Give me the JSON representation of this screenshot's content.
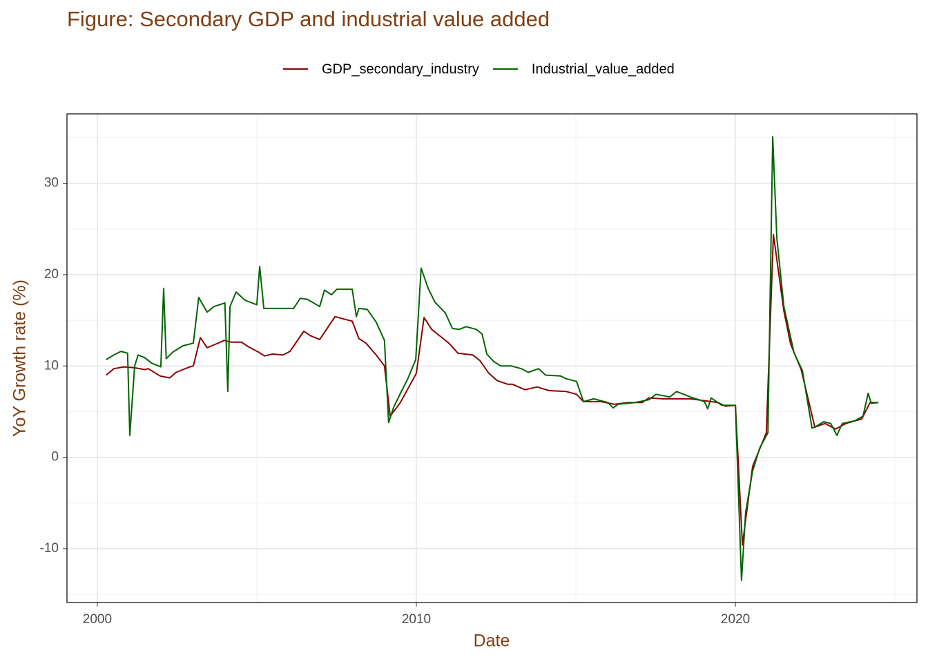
{
  "chart_data": {
    "type": "line",
    "title": "Figure: Secondary GDP and industrial value added",
    "x_label": "Date",
    "y_label": "YoY Growth rate (%)",
    "xlim": [
      1999.05,
      2025.69
    ],
    "xticks": [
      2000,
      2010,
      2020
    ],
    "ylim": [
      -15.9,
      37.6
    ],
    "yticks": [
      -10,
      0,
      10,
      20,
      30
    ],
    "grid": true,
    "minor_grid": true,
    "legend_position": "top",
    "series": [
      {
        "name": "GDP_secondary_industry",
        "color": "#8b0000",
        "x": [
          2000.28,
          2000.52,
          2000.84,
          2001.17,
          2001.49,
          2001.6,
          2001.97,
          2002.27,
          2002.47,
          2002.9,
          2003.01,
          2003.23,
          2003.44,
          2003.72,
          2003.98,
          2004.2,
          2004.52,
          2004.74,
          2005.06,
          2005.24,
          2005.5,
          2005.82,
          2006.04,
          2006.47,
          2006.69,
          2006.97,
          2007.45,
          2007.99,
          2008.2,
          2008.42,
          2008.74,
          2009.0,
          2009.18,
          2009.5,
          2010.0,
          2010.24,
          2010.48,
          2011.02,
          2011.3,
          2011.77,
          2011.99,
          2012.27,
          2012.53,
          2012.86,
          2013.01,
          2013.4,
          2013.79,
          2014.16,
          2014.7,
          2015.02,
          2015.24,
          2015.78,
          2016.21,
          2016.65,
          2017.08,
          2017.29,
          2017.73,
          2018.59,
          2019.46,
          2019.68,
          2020.0,
          2020.22,
          2020.54,
          2020.97,
          2021.19,
          2021.52,
          2021.73,
          2022.06,
          2022.49,
          2022.81,
          2023.14,
          2023.46,
          2023.96,
          2024.22,
          2024.48
        ],
        "values": [
          9.0,
          9.7,
          9.9,
          9.8,
          9.6,
          9.7,
          8.9,
          8.7,
          9.3,
          9.9,
          10.0,
          13.1,
          12.0,
          12.4,
          12.8,
          12.6,
          12.6,
          12.1,
          11.5,
          11.1,
          11.3,
          11.2,
          11.6,
          13.8,
          13.3,
          12.9,
          15.4,
          14.9,
          13.0,
          12.5,
          11.2,
          10.0,
          4.5,
          6.0,
          9.2,
          15.3,
          14.0,
          12.5,
          11.4,
          11.2,
          10.6,
          9.2,
          8.4,
          8.0,
          8.0,
          7.4,
          7.7,
          7.3,
          7.2,
          6.9,
          6.1,
          6.1,
          5.8,
          6.0,
          6.0,
          6.5,
          6.4,
          6.4,
          6.0,
          5.6,
          5.7,
          -9.6,
          -1.0,
          2.7,
          24.4,
          16.0,
          12.4,
          9.6,
          3.3,
          3.7,
          3.1,
          3.7,
          4.2,
          6.0,
          6.0
        ]
      },
      {
        "name": "Industrial_value_added",
        "color": "#006400",
        "x": [
          2000.28,
          2000.52,
          2000.74,
          2000.95,
          2001.02,
          2001.17,
          2001.28,
          2001.49,
          2001.71,
          2001.99,
          2002.08,
          2002.16,
          2002.36,
          2002.68,
          2003.01,
          2003.18,
          2003.44,
          2003.66,
          2004.0,
          2004.09,
          2004.16,
          2004.35,
          2004.63,
          2005.0,
          2005.09,
          2005.22,
          2005.61,
          2006.15,
          2006.36,
          2006.58,
          2006.97,
          2007.12,
          2007.34,
          2007.51,
          2007.99,
          2008.12,
          2008.2,
          2008.46,
          2008.74,
          2009.0,
          2009.13,
          2009.29,
          2009.5,
          2009.72,
          2009.98,
          2010.15,
          2010.37,
          2010.58,
          2010.91,
          2011.13,
          2011.34,
          2011.56,
          2011.88,
          2012.06,
          2012.21,
          2012.42,
          2012.64,
          2012.97,
          2013.29,
          2013.51,
          2013.83,
          2014.05,
          2014.52,
          2014.7,
          2015.02,
          2015.24,
          2015.56,
          2016.0,
          2016.17,
          2016.32,
          2016.86,
          2017.29,
          2017.51,
          2017.94,
          2018.16,
          2018.59,
          2019.03,
          2019.13,
          2019.24,
          2019.57,
          2020.0,
          2020.19,
          2020.32,
          2020.54,
          2020.76,
          2021.02,
          2021.17,
          2021.3,
          2021.52,
          2021.84,
          2022.1,
          2022.4,
          2022.49,
          2022.77,
          2022.99,
          2023.18,
          2023.35,
          2023.74,
          2024.0,
          2024.16,
          2024.26,
          2024.48
        ],
        "values": [
          10.7,
          11.2,
          11.6,
          11.4,
          2.4,
          10.0,
          11.2,
          10.9,
          10.3,
          9.9,
          18.5,
          10.8,
          11.5,
          12.2,
          12.5,
          17.5,
          15.9,
          16.5,
          16.9,
          7.2,
          16.5,
          18.1,
          17.2,
          16.7,
          20.9,
          16.3,
          16.3,
          16.3,
          17.4,
          17.3,
          16.5,
          18.3,
          17.8,
          18.4,
          18.4,
          15.4,
          16.3,
          16.2,
          14.8,
          12.8,
          3.8,
          5.5,
          7.0,
          8.5,
          10.7,
          20.7,
          18.5,
          17.0,
          15.8,
          14.1,
          14.0,
          14.3,
          14.0,
          13.5,
          11.3,
          10.5,
          10.0,
          10.0,
          9.7,
          9.3,
          9.7,
          9.0,
          8.9,
          8.6,
          8.3,
          6.1,
          6.4,
          6.0,
          5.4,
          5.8,
          6.0,
          6.3,
          6.9,
          6.6,
          7.2,
          6.6,
          6.1,
          5.3,
          6.5,
          5.7,
          5.7,
          -13.5,
          -6.0,
          -1.5,
          1.0,
          2.7,
          35.1,
          24.0,
          16.5,
          11.4,
          9.5,
          3.2,
          3.3,
          3.9,
          3.7,
          2.4,
          3.7,
          4.0,
          4.5,
          7.0,
          5.9,
          6.0
        ]
      }
    ]
  }
}
